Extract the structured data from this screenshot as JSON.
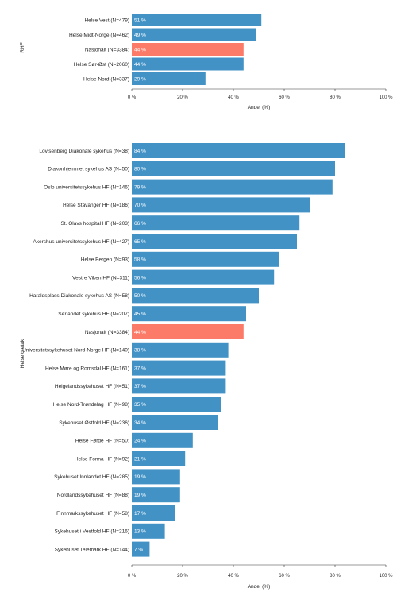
{
  "colors": {
    "bar": "#4292c6",
    "highlight": "#fc7b68",
    "axis": "#333333",
    "text": "#222222"
  },
  "chart_data": [
    {
      "type": "bar",
      "orientation": "horizontal",
      "ylabel": "RHF",
      "xlabel": "Andel (%)",
      "xlim": [
        0,
        100
      ],
      "xticks": [
        "0 %",
        "20 %",
        "40 %",
        "60 %",
        "80 %",
        "100 %"
      ],
      "highlight_category": "Nasjonalt (N=3384)",
      "categories": [
        "Helse Vest (N=479)",
        "Helse Midt-Norge (N=462)",
        "Nasjonalt (N=3384)",
        "Helse Sør-Øst (N=2060)",
        "Helse Nord (N=337)"
      ],
      "values": [
        51,
        49,
        44,
        44,
        29
      ],
      "value_labels": [
        "51 %",
        "49 %",
        "44 %",
        "44 %",
        "29 %"
      ]
    },
    {
      "type": "bar",
      "orientation": "horizontal",
      "ylabel": "Helseforetak",
      "xlabel": "Andel (%)",
      "xlim": [
        0,
        100
      ],
      "xticks": [
        "0 %",
        "20 %",
        "40 %",
        "60 %",
        "80 %",
        "100 %"
      ],
      "highlight_category": "Nasjonalt (N=3384)",
      "categories": [
        "Lovisenberg Diakonale sykehus (N=38)",
        "Diakonhjemmet sykehus AS (N=50)",
        "Oslo universitetssykehus HF (N=146)",
        "Helse Stavanger HF (N=186)",
        "St. Olavs hospital HF (N=203)",
        "Akershus universitetssykehus HF (N=427)",
        "Helse Bergen (N=93)",
        "Vestre Viken HF (N=311)",
        "Haraldsplass Diakonale sykehus AS (N=58)",
        "Sørlandet sykehus HF (N=207)",
        "Nasjonalt (N=3384)",
        "Universitetssykehuset Nord-Norge HF (N=140)",
        "Helse Møre og Romsdal HF (N=161)",
        "Helgelandssykehuset HF (N=51)",
        "Helse Nord-Trøndelag HF (N=98)",
        "Sykehuset Østfold HF (N=236)",
        "Helse Førde HF (N=50)",
        "Helse Fonna HF (N=92)",
        "Sykehuset Innlandet HF (N=285)",
        "Nordlandssykehuset HF (N=88)",
        "Finnmarkssykehuset HF (N=58)",
        "Sykehuset i Vestfold HF (N=216)",
        "Sykehuset Telemark HF (N=144)"
      ],
      "values": [
        84,
        80,
        79,
        70,
        66,
        65,
        58,
        56,
        50,
        45,
        44,
        38,
        37,
        37,
        35,
        34,
        24,
        21,
        19,
        19,
        17,
        13,
        7
      ],
      "value_labels": [
        "84 %",
        "80 %",
        "79 %",
        "70 %",
        "66 %",
        "65 %",
        "58 %",
        "56 %",
        "50 %",
        "45 %",
        "44 %",
        "38 %",
        "37 %",
        "37 %",
        "35 %",
        "34 %",
        "24 %",
        "21 %",
        "19 %",
        "19 %",
        "17 %",
        "13 %",
        "7 %"
      ]
    }
  ]
}
